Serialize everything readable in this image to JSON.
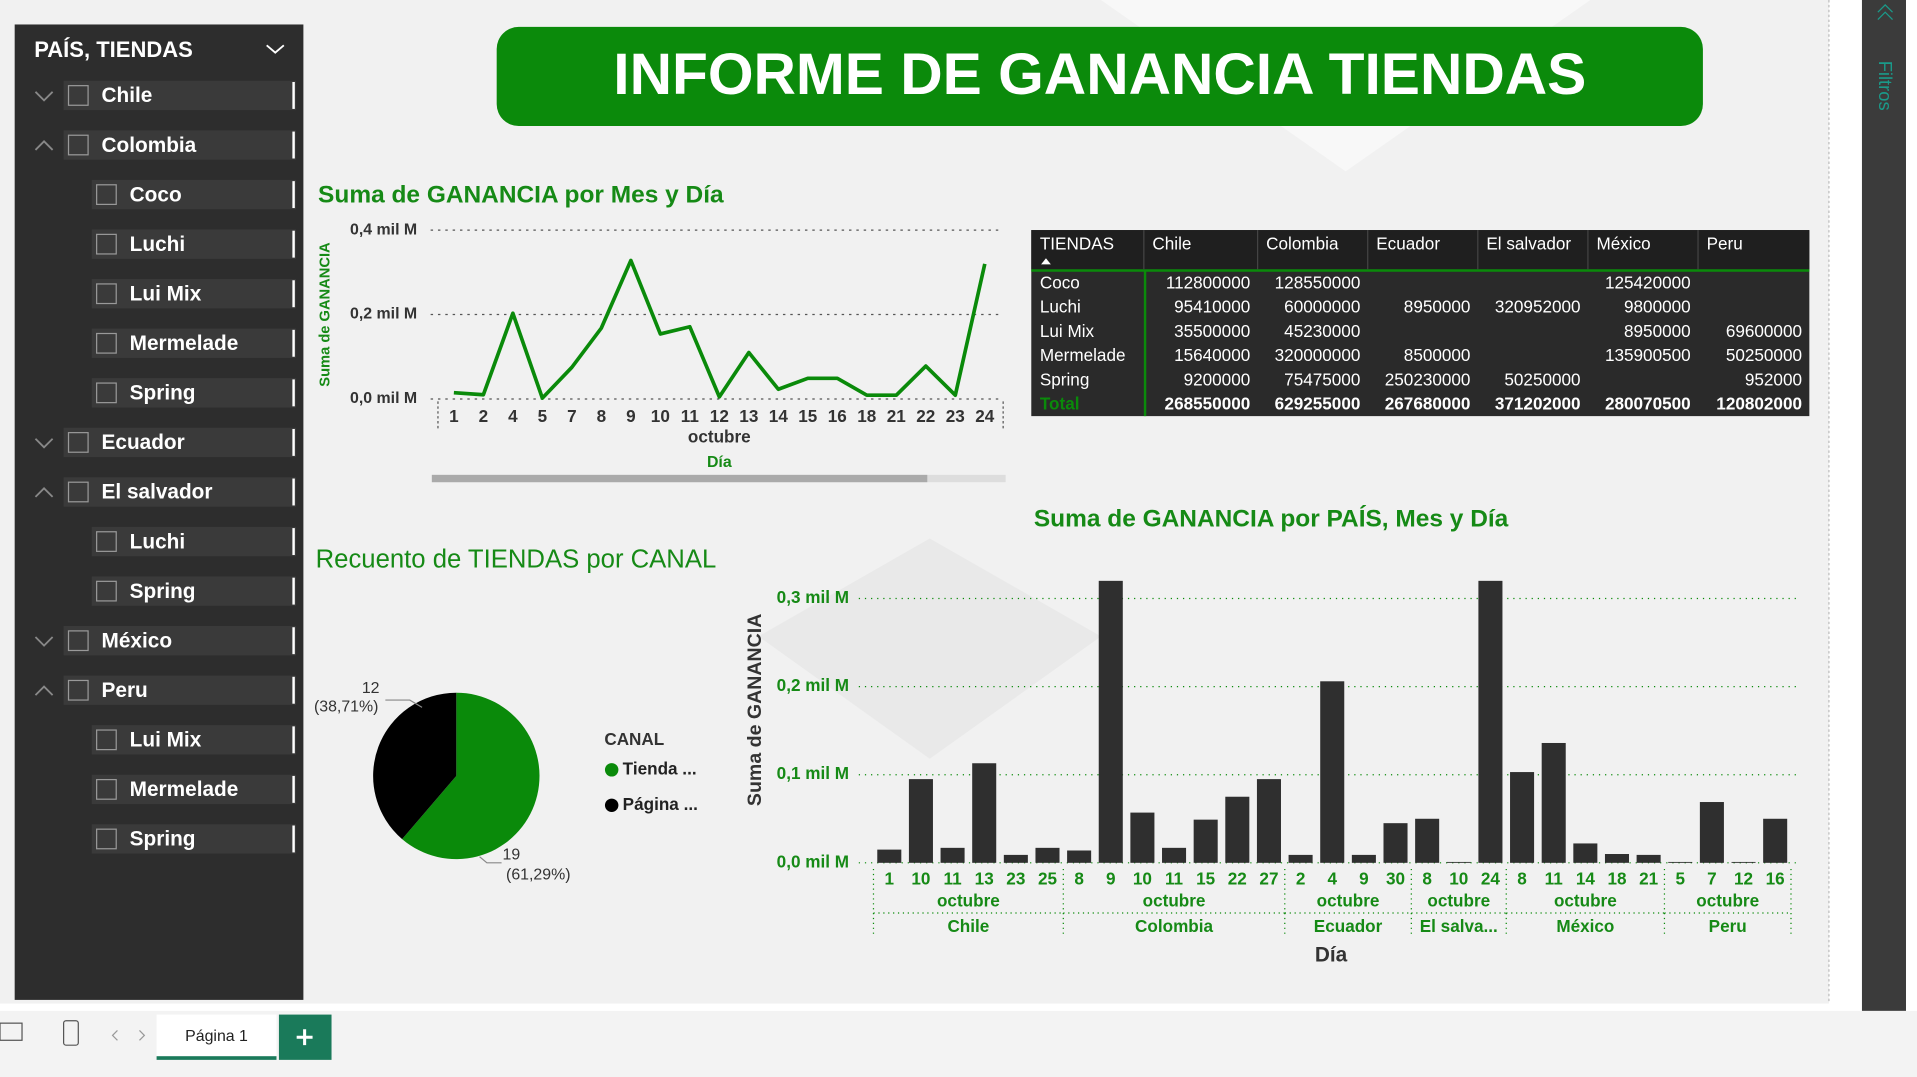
{
  "header": {
    "title": "INFORME DE GANANCIA TIENDAS"
  },
  "slicer": {
    "title": "PAÍS, TIENDAS",
    "items": [
      {
        "label": "Chile"
      },
      {
        "label": "Colombia",
        "children": [
          "Coco",
          "Luchi",
          "Lui Mix",
          "Mermelade",
          "Spring"
        ]
      },
      {
        "label": "Ecuador"
      },
      {
        "label": "El salvador",
        "children": [
          "Luchi",
          "Spring"
        ]
      },
      {
        "label": "México"
      },
      {
        "label": "Peru",
        "children": [
          "Lui Mix",
          "Mermelade",
          "Spring"
        ]
      }
    ]
  },
  "filters_pane": {
    "label": "Filtros"
  },
  "tabs": [
    "Página 1"
  ],
  "table": {
    "columns": [
      "TIENDAS",
      "Chile",
      "Colombia",
      "Ecuador",
      "El salvador",
      "México",
      "Peru"
    ],
    "rows": [
      {
        "label": "Coco",
        "values": [
          112800000,
          128550000,
          null,
          null,
          125420000,
          null
        ]
      },
      {
        "label": "Luchi",
        "values": [
          95410000,
          60000000,
          8950000,
          320952000,
          9800000,
          null
        ]
      },
      {
        "label": "Lui Mix",
        "values": [
          35500000,
          45230000,
          null,
          null,
          8950000,
          69600000
        ]
      },
      {
        "label": "Mermelade",
        "values": [
          15640000,
          320000000,
          8500000,
          null,
          135900500,
          50250000
        ]
      },
      {
        "label": "Spring",
        "values": [
          9200000,
          75475000,
          250230000,
          50250000,
          null,
          952000
        ]
      }
    ],
    "total": {
      "label": "Total",
      "values": [
        268550000,
        629255000,
        267680000,
        371202000,
        280070500,
        120802000
      ]
    }
  },
  "chart_data": [
    {
      "type": "line",
      "title": "Suma de GANANCIA por Mes y Día",
      "y_label": "Suma de GANANCIA",
      "x_label": "Día",
      "month": "octubre",
      "categories": [
        "1",
        "2",
        "4",
        "5",
        "7",
        "8",
        "9",
        "10",
        "11",
        "12",
        "13",
        "14",
        "15",
        "16",
        "18",
        "21",
        "22",
        "23",
        "24"
      ],
      "values": [
        15000000,
        10000000,
        203000000,
        2000000,
        75000000,
        168000000,
        328000000,
        154000000,
        171000000,
        5000000,
        110000000,
        23000000,
        49000000,
        49000000,
        9000000,
        9000000,
        78000000,
        9000000,
        320000000
      ],
      "color": "#0a8a0a",
      "ylim": [
        0,
        400000000
      ],
      "yticks": [
        {
          "value": 0,
          "label": "0,0 mil M"
        },
        {
          "value": 200000000,
          "label": "0,2 mil M"
        },
        {
          "value": 400000000,
          "label": "0,4 mil M"
        }
      ],
      "grid": true
    },
    {
      "type": "pie",
      "title": "Recuento de TIENDAS por CANAL",
      "legend_title": "CANAL",
      "categories": [
        "Tienda ...",
        "Página ..."
      ],
      "values": [
        19,
        12
      ],
      "percent_labels": [
        "(61,29%)",
        "(38,71%)"
      ],
      "colors": [
        "#0a8a0a",
        "#000000"
      ]
    },
    {
      "type": "bar",
      "title": "Suma de GANANCIA por PAÍS, Mes y Día",
      "y_label": "Suma de GANANCIA",
      "x_label": "Día",
      "color": "#2f2f2f",
      "groups": [
        {
          "country": "Chile",
          "month": "octubre",
          "days": [
            "1",
            "10",
            "11",
            "13",
            "23",
            "25"
          ],
          "values": [
            15000000,
            95000000,
            17000000,
            113000000,
            9000000,
            17000000
          ]
        },
        {
          "country": "Colombia",
          "month": "octubre",
          "days": [
            "8",
            "9",
            "10",
            "11",
            "15",
            "22",
            "27"
          ],
          "values": [
            14000000,
            320000000,
            57000000,
            17000000,
            49000000,
            75000000,
            95000000
          ]
        },
        {
          "country": "Ecuador",
          "month": "octubre",
          "days": [
            "2",
            "4",
            "9",
            "30"
          ],
          "values": [
            9000000,
            206000000,
            9000000,
            45000000
          ]
        },
        {
          "country": "El salva...",
          "month": "octubre",
          "days": [
            "8",
            "10",
            "24"
          ],
          "values": [
            50000000,
            1000000,
            320000000
          ]
        },
        {
          "country": "México",
          "month": "octubre",
          "days": [
            "8",
            "11",
            "14",
            "18",
            "21"
          ],
          "values": [
            103000000,
            136000000,
            22000000,
            10000000,
            9000000
          ]
        },
        {
          "country": "Peru",
          "month": "octubre",
          "days": [
            "5",
            "7",
            "12",
            "16"
          ],
          "values": [
            1000000,
            69000000,
            1000000,
            50000000
          ]
        }
      ],
      "ylim": [
        0,
        330000000
      ],
      "yticks": [
        {
          "value": 0,
          "label": "0,0 mil M"
        },
        {
          "value": 100000000,
          "label": "0,1 mil M"
        },
        {
          "value": 200000000,
          "label": "0,2 mil M"
        },
        {
          "value": 300000000,
          "label": "0,3 mil M"
        }
      ],
      "grid": true
    }
  ]
}
